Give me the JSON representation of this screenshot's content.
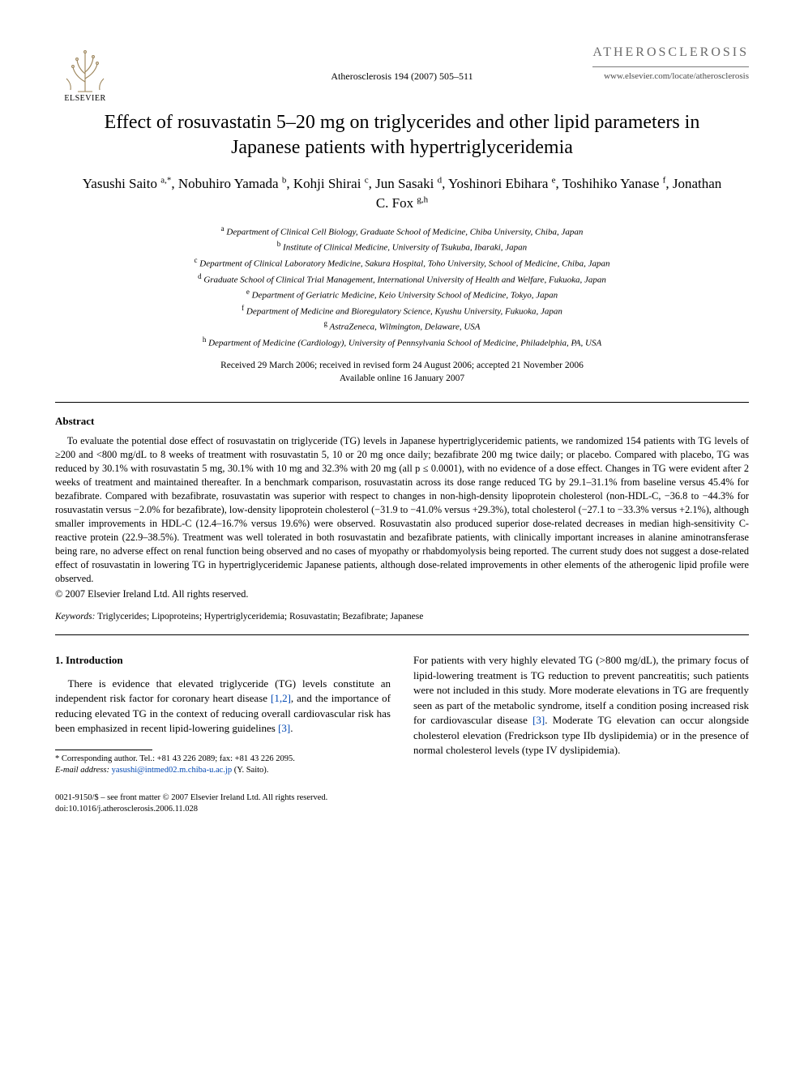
{
  "publisher": {
    "name": "ELSEVIER"
  },
  "journal": {
    "name": "ATHEROSCLEROSIS",
    "url": "www.elsevier.com/locate/atherosclerosis",
    "citation": "Atherosclerosis 194 (2007) 505–511"
  },
  "title": "Effect of rosuvastatin 5–20 mg on triglycerides and other lipid parameters in Japanese patients with hypertriglyceridemia",
  "authors_html": "Yasushi Saito <sup>a,*</sup>, Nobuhiro Yamada <sup>b</sup>, Kohji Shirai <sup>c</sup>, Jun Sasaki <sup>d</sup>, Yoshinori Ebihara <sup>e</sup>, Toshihiko Yanase <sup>f</sup>, Jonathan C. Fox <sup>g,h</sup>",
  "affiliations": [
    {
      "sup": "a",
      "text": "Department of Clinical Cell Biology, Graduate School of Medicine, Chiba University, Chiba, Japan"
    },
    {
      "sup": "b",
      "text": "Institute of Clinical Medicine, University of Tsukuba, Ibaraki, Japan"
    },
    {
      "sup": "c",
      "text": "Department of Clinical Laboratory Medicine, Sakura Hospital, Toho University, School of Medicine, Chiba, Japan"
    },
    {
      "sup": "d",
      "text": "Graduate School of Clinical Trial Management, International University of Health and Welfare, Fukuoka, Japan"
    },
    {
      "sup": "e",
      "text": "Department of Geriatric Medicine, Keio University School of Medicine, Tokyo, Japan"
    },
    {
      "sup": "f",
      "text": "Department of Medicine and Bioregulatory Science, Kyushu University, Fukuoka, Japan"
    },
    {
      "sup": "g",
      "text": "AstraZeneca, Wilmington, Delaware, USA"
    },
    {
      "sup": "h",
      "text": "Department of Medicine (Cardiology), University of Pennsylvania School of Medicine, Philadelphia, PA, USA"
    }
  ],
  "dates": {
    "received": "Received 29 March 2006; received in revised form 24 August 2006; accepted 21 November 2006",
    "online": "Available online 16 January 2007"
  },
  "abstract": {
    "heading": "Abstract",
    "body": "To evaluate the potential dose effect of rosuvastatin on triglyceride (TG) levels in Japanese hypertriglyceridemic patients, we randomized 154 patients with TG levels of ≥200 and <800 mg/dL to 8 weeks of treatment with rosuvastatin 5, 10 or 20 mg once daily; bezafibrate 200 mg twice daily; or placebo. Compared with placebo, TG was reduced by 30.1% with rosuvastatin 5 mg, 30.1% with 10 mg and 32.3% with 20 mg (all p ≤ 0.0001), with no evidence of a dose effect. Changes in TG were evident after 2 weeks of treatment and maintained thereafter. In a benchmark comparison, rosuvastatin across its dose range reduced TG by 29.1–31.1% from baseline versus 45.4% for bezafibrate. Compared with bezafibrate, rosuvastatin was superior with respect to changes in non-high-density lipoprotein cholesterol (non-HDL-C, −36.8 to −44.3% for rosuvastatin versus −2.0% for bezafibrate), low-density lipoprotein cholesterol (−31.9 to −41.0% versus +29.3%), total cholesterol (−27.1 to −33.3% versus +2.1%), although smaller improvements in HDL-C (12.4–16.7% versus 19.6%) were observed. Rosuvastatin also produced superior dose-related decreases in median high-sensitivity C-reactive protein (22.9–38.5%). Treatment was well tolerated in both rosuvastatin and bezafibrate patients, with clinically important increases in alanine aminotransferase being rare, no adverse effect on renal function being observed and no cases of myopathy or rhabdomyolysis being reported. The current study does not suggest a dose-related effect of rosuvastatin in lowering TG in hypertriglyceridemic Japanese patients, although dose-related improvements in other elements of the atherogenic lipid profile were observed.",
    "copyright": "© 2007 Elsevier Ireland Ltd. All rights reserved."
  },
  "keywords": {
    "label": "Keywords:",
    "text": "Triglycerides; Lipoproteins; Hypertriglyceridemia; Rosuvastatin; Bezafibrate; Japanese"
  },
  "section1": {
    "heading": "1.  Introduction",
    "col1": "There is evidence that elevated triglyceride (TG) levels constitute an independent risk factor for coronary heart disease [1,2], and the importance of reducing elevated TG in the context of reducing overall cardiovascular risk has been emphasized in recent lipid-lowering guidelines [3].",
    "col2": "For patients with very highly elevated TG (>800 mg/dL), the primary focus of lipid-lowering treatment is TG reduction to prevent pancreatitis; such patients were not included in this study. More moderate elevations in TG are frequently seen as part of the metabolic syndrome, itself a condition posing increased risk for cardiovascular disease [3]. Moderate TG elevation can occur alongside cholesterol elevation (Fredrickson type IIb dyslipidemia) or in the presence of normal cholesterol levels (type IV dyslipidemia)."
  },
  "footnotes": {
    "corresponding": "* Corresponding author. Tel.: +81 43 226 2089; fax: +81 43 226 2095.",
    "email_label": "E-mail address:",
    "email": "yasushi@intmed02.m.chiba-u.ac.jp",
    "email_tail": "(Y. Saito)."
  },
  "footer": {
    "front_matter": "0021-9150/$ – see front matter © 2007 Elsevier Ireland Ltd. All rights reserved.",
    "doi": "doi:10.1016/j.atherosclerosis.2006.11.028"
  },
  "colors": {
    "link": "#0047b3",
    "grey": "#6b6b6b",
    "tree": "#9a8257"
  }
}
